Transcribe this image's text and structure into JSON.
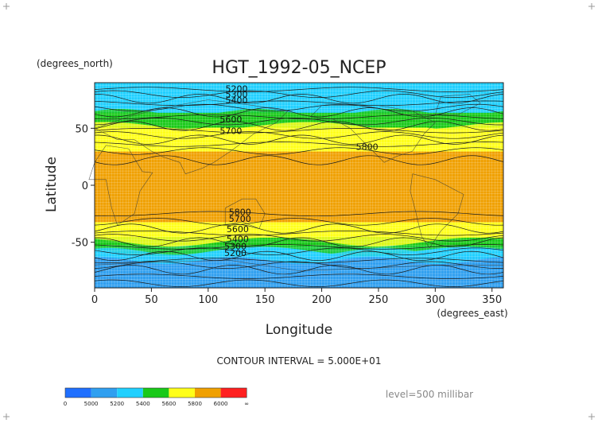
{
  "chart_data": {
    "type": "heatmap",
    "title": "HGT_1992-05_NCEP",
    "xlabel": "Longitude",
    "ylabel": "Latitude",
    "x_units": "(degrees_east)",
    "y_units": "(degrees_north)",
    "xlim": [
      0,
      360
    ],
    "ylim": [
      -90,
      90
    ],
    "x_ticks": [
      0,
      50,
      100,
      150,
      200,
      250,
      300,
      350
    ],
    "y_ticks": [
      50,
      0,
      -50
    ],
    "contour_interval_text": "CONTOUR INTERVAL = 5.000E+01",
    "level_text": "level=500 millibar",
    "contour_labels": [
      "5200",
      "5300",
      "5400",
      "5600",
      "5700",
      "5800"
    ],
    "colorbar": {
      "tick_labels": [
        "0",
        "5000",
        "5200",
        "5400",
        "5600",
        "5800",
        "6000",
        "∞"
      ],
      "colors": [
        "#1f6fff",
        "#2f9ff0",
        "#20d0ff",
        "#19c919",
        "#ffff1a",
        "#f0a000",
        "#ff2020"
      ]
    },
    "band_levels": [
      {
        "lat": -90,
        "value": 5010
      },
      {
        "lat": -75,
        "value": 5050
      },
      {
        "lat": -65,
        "value": 5130
      },
      {
        "lat": -55,
        "value": 5330
      },
      {
        "lat": -48,
        "value": 5530
      },
      {
        "lat": -40,
        "value": 5690
      },
      {
        "lat": -30,
        "value": 5820
      },
      {
        "lat": 0,
        "value": 5860
      },
      {
        "lat": 25,
        "value": 5830
      },
      {
        "lat": 37,
        "value": 5750
      },
      {
        "lat": 48,
        "value": 5640
      },
      {
        "lat": 58,
        "value": 5500
      },
      {
        "lat": 66,
        "value": 5370
      },
      {
        "lat": 75,
        "value": 5270
      },
      {
        "lat": 90,
        "value": 5210
      }
    ]
  }
}
